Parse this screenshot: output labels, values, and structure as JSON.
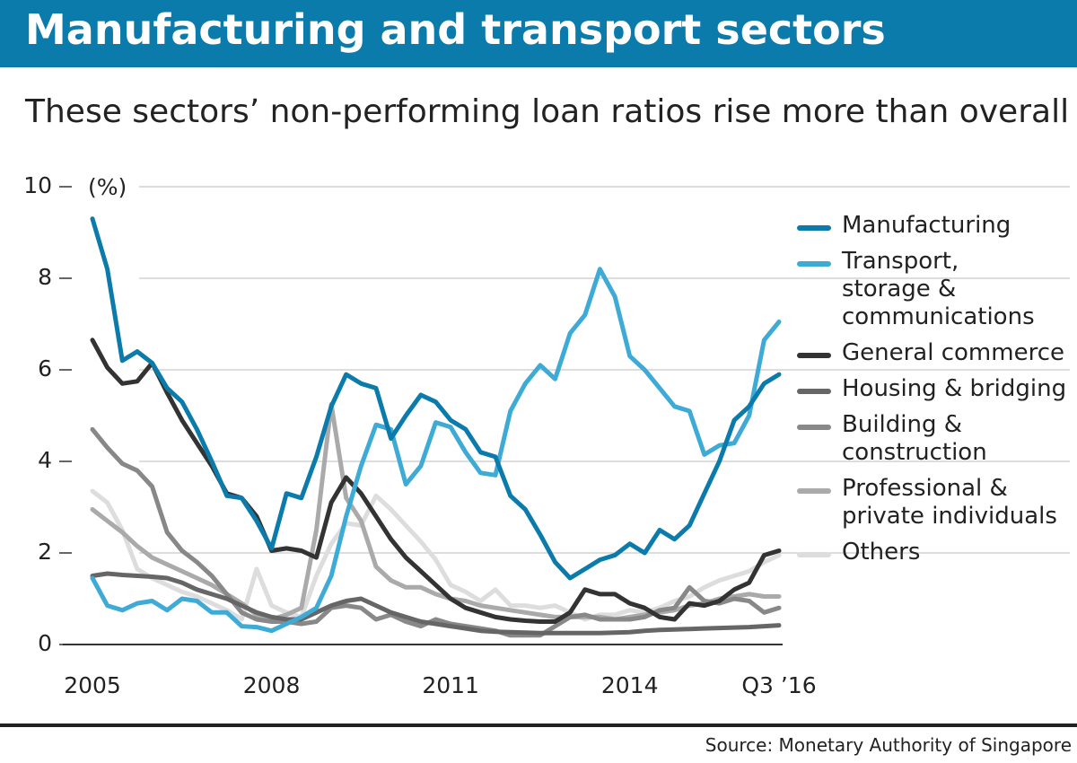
{
  "chart_data": {
    "type": "line",
    "title": "Manufacturing and transport sectors",
    "subtitle": "These sectors’ non-performing loan ratios rise more than overall",
    "y_unit": "(%)",
    "source": "Source: Monetary Authority of Singapore",
    "categories": [
      "2005",
      null,
      null,
      null,
      null,
      null,
      null,
      null,
      null,
      null,
      null,
      null,
      "2008",
      null,
      null,
      null,
      null,
      null,
      null,
      null,
      null,
      null,
      null,
      null,
      "2011",
      null,
      null,
      null,
      null,
      null,
      null,
      null,
      null,
      null,
      null,
      null,
      "2014",
      null,
      null,
      null,
      null,
      null,
      null,
      null,
      null,
      null,
      "Q3 ’16"
    ],
    "ylim": [
      0,
      10
    ],
    "yticks": [
      0,
      2,
      4,
      6,
      8,
      10
    ],
    "grid": true,
    "legend": "right",
    "series": [
      {
        "name": "Manufacturing",
        "color": "#0b7bab",
        "values": [
          9.3,
          8.2,
          6.2,
          6.4,
          6.15,
          5.6,
          5.3,
          4.7,
          4.0,
          3.25,
          3.2,
          2.7,
          2.1,
          3.3,
          3.2,
          4.1,
          5.2,
          5.9,
          5.7,
          5.6,
          4.5,
          5.0,
          5.45,
          5.3,
          4.9,
          4.7,
          4.2,
          4.1,
          3.25,
          2.95,
          2.4,
          1.8,
          1.45,
          1.65,
          1.85,
          1.95,
          2.2,
          2.0,
          2.5,
          2.3,
          2.6,
          3.3,
          4.0,
          4.9,
          5.2,
          5.7,
          5.9
        ]
      },
      {
        "name": "Transport,\nstorage &\ncommunications",
        "color": "#3eaad6",
        "values": [
          1.45,
          0.85,
          0.75,
          0.9,
          0.95,
          0.75,
          1.0,
          0.95,
          0.7,
          0.7,
          0.4,
          0.38,
          0.3,
          0.45,
          0.6,
          0.8,
          1.5,
          2.8,
          3.9,
          4.8,
          4.7,
          3.5,
          3.9,
          4.85,
          4.75,
          4.2,
          3.75,
          3.7,
          5.1,
          5.7,
          6.1,
          5.8,
          6.8,
          7.2,
          8.2,
          7.6,
          6.3,
          6.0,
          5.6,
          5.2,
          5.1,
          4.15,
          4.35,
          4.4,
          5.0,
          6.65,
          7.05
        ]
      },
      {
        "name": "General commerce",
        "color": "#333333",
        "values": [
          6.65,
          6.05,
          5.7,
          5.75,
          6.15,
          5.5,
          4.9,
          4.4,
          3.9,
          3.3,
          3.2,
          2.8,
          2.05,
          2.1,
          2.05,
          1.9,
          3.1,
          3.65,
          3.3,
          2.8,
          2.3,
          1.9,
          1.6,
          1.3,
          1.0,
          0.8,
          0.7,
          0.6,
          0.55,
          0.52,
          0.5,
          0.5,
          0.7,
          1.2,
          1.1,
          1.1,
          0.9,
          0.8,
          0.6,
          0.55,
          0.9,
          0.85,
          0.95,
          1.2,
          1.35,
          1.95,
          2.05
        ]
      },
      {
        "name": "Housing & bridging",
        "color": "#666666",
        "values": [
          1.5,
          1.55,
          1.52,
          1.5,
          1.48,
          1.45,
          1.35,
          1.2,
          1.1,
          1.0,
          0.85,
          0.7,
          0.6,
          0.55,
          0.55,
          0.7,
          0.85,
          0.95,
          1.0,
          0.85,
          0.7,
          0.6,
          0.5,
          0.45,
          0.4,
          0.35,
          0.3,
          0.28,
          0.27,
          0.26,
          0.25,
          0.25,
          0.25,
          0.25,
          0.25,
          0.26,
          0.27,
          0.3,
          0.32,
          0.33,
          0.34,
          0.35,
          0.36,
          0.37,
          0.38,
          0.4,
          0.42
        ]
      },
      {
        "name": "Building &\nconstruction",
        "color": "#888888",
        "values": [
          4.7,
          4.3,
          3.95,
          3.8,
          3.45,
          2.45,
          2.05,
          1.8,
          1.5,
          1.1,
          0.7,
          0.55,
          0.5,
          0.5,
          0.45,
          0.5,
          0.8,
          0.85,
          0.8,
          0.55,
          0.65,
          0.5,
          0.4,
          0.55,
          0.45,
          0.4,
          0.35,
          0.3,
          0.2,
          0.2,
          0.2,
          0.4,
          0.6,
          0.65,
          0.55,
          0.55,
          0.55,
          0.6,
          0.75,
          0.8,
          1.25,
          0.95,
          0.9,
          1.0,
          0.95,
          0.7,
          0.8
        ]
      },
      {
        "name": "Professional &\nprivate individuals",
        "color": "#aaaaaa",
        "values": [
          2.95,
          2.7,
          2.45,
          2.15,
          1.9,
          1.75,
          1.6,
          1.45,
          1.3,
          1.1,
          0.9,
          0.65,
          0.55,
          0.65,
          0.8,
          2.5,
          5.25,
          3.2,
          2.7,
          1.7,
          1.4,
          1.25,
          1.25,
          1.1,
          1.0,
          0.95,
          0.85,
          0.8,
          0.75,
          0.7,
          0.65,
          0.6,
          0.6,
          0.6,
          0.6,
          0.55,
          0.6,
          0.65,
          0.7,
          0.75,
          0.85,
          0.9,
          1.0,
          1.05,
          1.1,
          1.05,
          1.05
        ]
      },
      {
        "name": "Others",
        "color": "#dddddd",
        "values": [
          3.35,
          3.1,
          2.5,
          1.65,
          1.45,
          1.3,
          1.15,
          1.05,
          0.9,
          0.75,
          0.55,
          1.65,
          0.85,
          0.7,
          0.6,
          1.5,
          2.2,
          2.65,
          2.6,
          3.25,
          2.95,
          2.6,
          2.25,
          1.85,
          1.3,
          1.15,
          0.95,
          1.2,
          0.85,
          0.85,
          0.8,
          0.85,
          0.7,
          0.55,
          0.65,
          0.65,
          0.75,
          0.7,
          0.8,
          0.95,
          1.05,
          1.25,
          1.4,
          1.5,
          1.6,
          1.8,
          1.95
        ]
      }
    ]
  }
}
